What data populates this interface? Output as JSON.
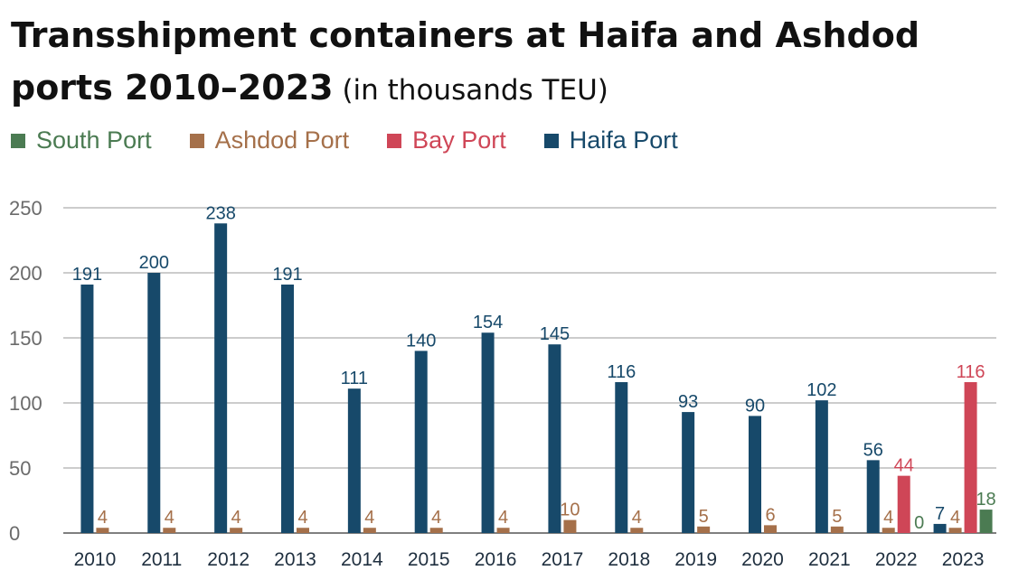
{
  "title": {
    "main_line1": "Transshipment containers at Haifa and Ashdod",
    "main_line2": "ports 2010–2023",
    "unit": " (in thousands TEU)"
  },
  "colors": {
    "haifa": "#17496a",
    "bay": "#cf4657",
    "ashdod": "#a5704a",
    "south": "#4b7b52"
  },
  "chart_data": {
    "type": "bar",
    "title": "Transshipment containers at Haifa and Ashdod ports 2010–2023 (in thousands TEU)",
    "xlabel": "",
    "ylabel": "",
    "ylim": [
      0,
      250
    ],
    "yticks": [
      0,
      50,
      100,
      150,
      200,
      250
    ],
    "grid": true,
    "legend_position": "top-left",
    "legend_order": [
      "South Port",
      "Ashdod Port",
      "Bay Port",
      "Haifa Port"
    ],
    "categories": [
      "2010",
      "2011",
      "2012",
      "2013",
      "2014",
      "2015",
      "2016",
      "2017",
      "2018",
      "2019",
      "2020",
      "2021",
      "2022",
      "2023"
    ],
    "series": [
      {
        "name": "Haifa Port",
        "key": "haifa",
        "values": [
          191,
          200,
          238,
          191,
          111,
          140,
          154,
          145,
          116,
          93,
          90,
          102,
          56,
          7
        ]
      },
      {
        "name": "Ashdod Port",
        "key": "ashdod",
        "values": [
          4,
          4,
          4,
          4,
          4,
          4,
          4,
          10,
          4,
          5,
          6,
          5,
          4,
          4
        ]
      },
      {
        "name": "Bay Port",
        "key": "bay",
        "values": [
          null,
          null,
          null,
          null,
          null,
          null,
          null,
          null,
          null,
          null,
          null,
          null,
          44,
          116
        ]
      },
      {
        "name": "South Port",
        "key": "south",
        "values": [
          null,
          null,
          null,
          null,
          null,
          null,
          null,
          null,
          null,
          null,
          null,
          null,
          0,
          18
        ]
      }
    ]
  }
}
